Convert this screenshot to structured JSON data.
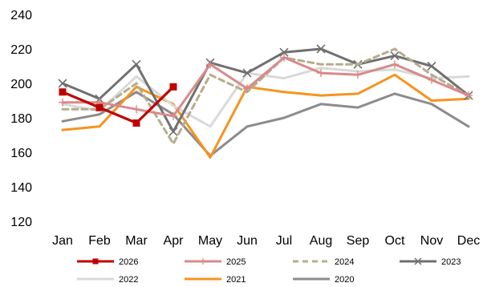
{
  "chart_data": {
    "type": "line",
    "title": "",
    "xlabel": "",
    "ylabel": "",
    "categories": [
      "Jan",
      "Feb",
      "Mar",
      "Apr",
      "May",
      "Jun",
      "Jul",
      "Aug",
      "Sep",
      "Oct",
      "Nov",
      "Dec"
    ],
    "ylim": [
      120,
      240
    ],
    "yticks": [
      120,
      140,
      160,
      180,
      200,
      220,
      240
    ],
    "grid": false,
    "legend_position": "bottom",
    "series": [
      {
        "name": "2026",
        "color": "#C00000",
        "style": "solid",
        "marker": "square",
        "values": [
          195,
          186,
          177,
          198,
          null,
          null,
          null,
          null,
          null,
          null,
          null,
          null
        ]
      },
      {
        "name": "2025",
        "color": "#D98A8A",
        "style": "solid",
        "marker": "plus",
        "values": [
          189,
          189,
          185,
          181,
          211,
          197,
          215,
          206,
          205,
          211,
          202,
          193
        ]
      },
      {
        "name": "2024",
        "color": "#B5AD8C",
        "style": "dashed",
        "marker": "none",
        "values": [
          185,
          185,
          200,
          165,
          205,
          195,
          215,
          211,
          211,
          220,
          205,
          193
        ]
      },
      {
        "name": "2023",
        "color": "#707070",
        "style": "solid",
        "marker": "x",
        "values": [
          200,
          191,
          211,
          172,
          212,
          206,
          218,
          220,
          211,
          216,
          210,
          193
        ]
      },
      {
        "name": "2022",
        "color": "#D9D9D9",
        "style": "solid",
        "marker": "none",
        "values": [
          188,
          184,
          204,
          187,
          175,
          206,
          203,
          209,
          207,
          208,
          203,
          204
        ]
      },
      {
        "name": "2021",
        "color": "#F7931E",
        "style": "solid",
        "marker": "none",
        "values": [
          173,
          175,
          198,
          188,
          157,
          198,
          195,
          193,
          194,
          205,
          190,
          191
        ]
      },
      {
        "name": "2020",
        "color": "#8C8C8C",
        "style": "solid",
        "marker": "none",
        "values": [
          178,
          182,
          195,
          182,
          158,
          175,
          180,
          188,
          186,
          194,
          188,
          175
        ]
      }
    ]
  }
}
